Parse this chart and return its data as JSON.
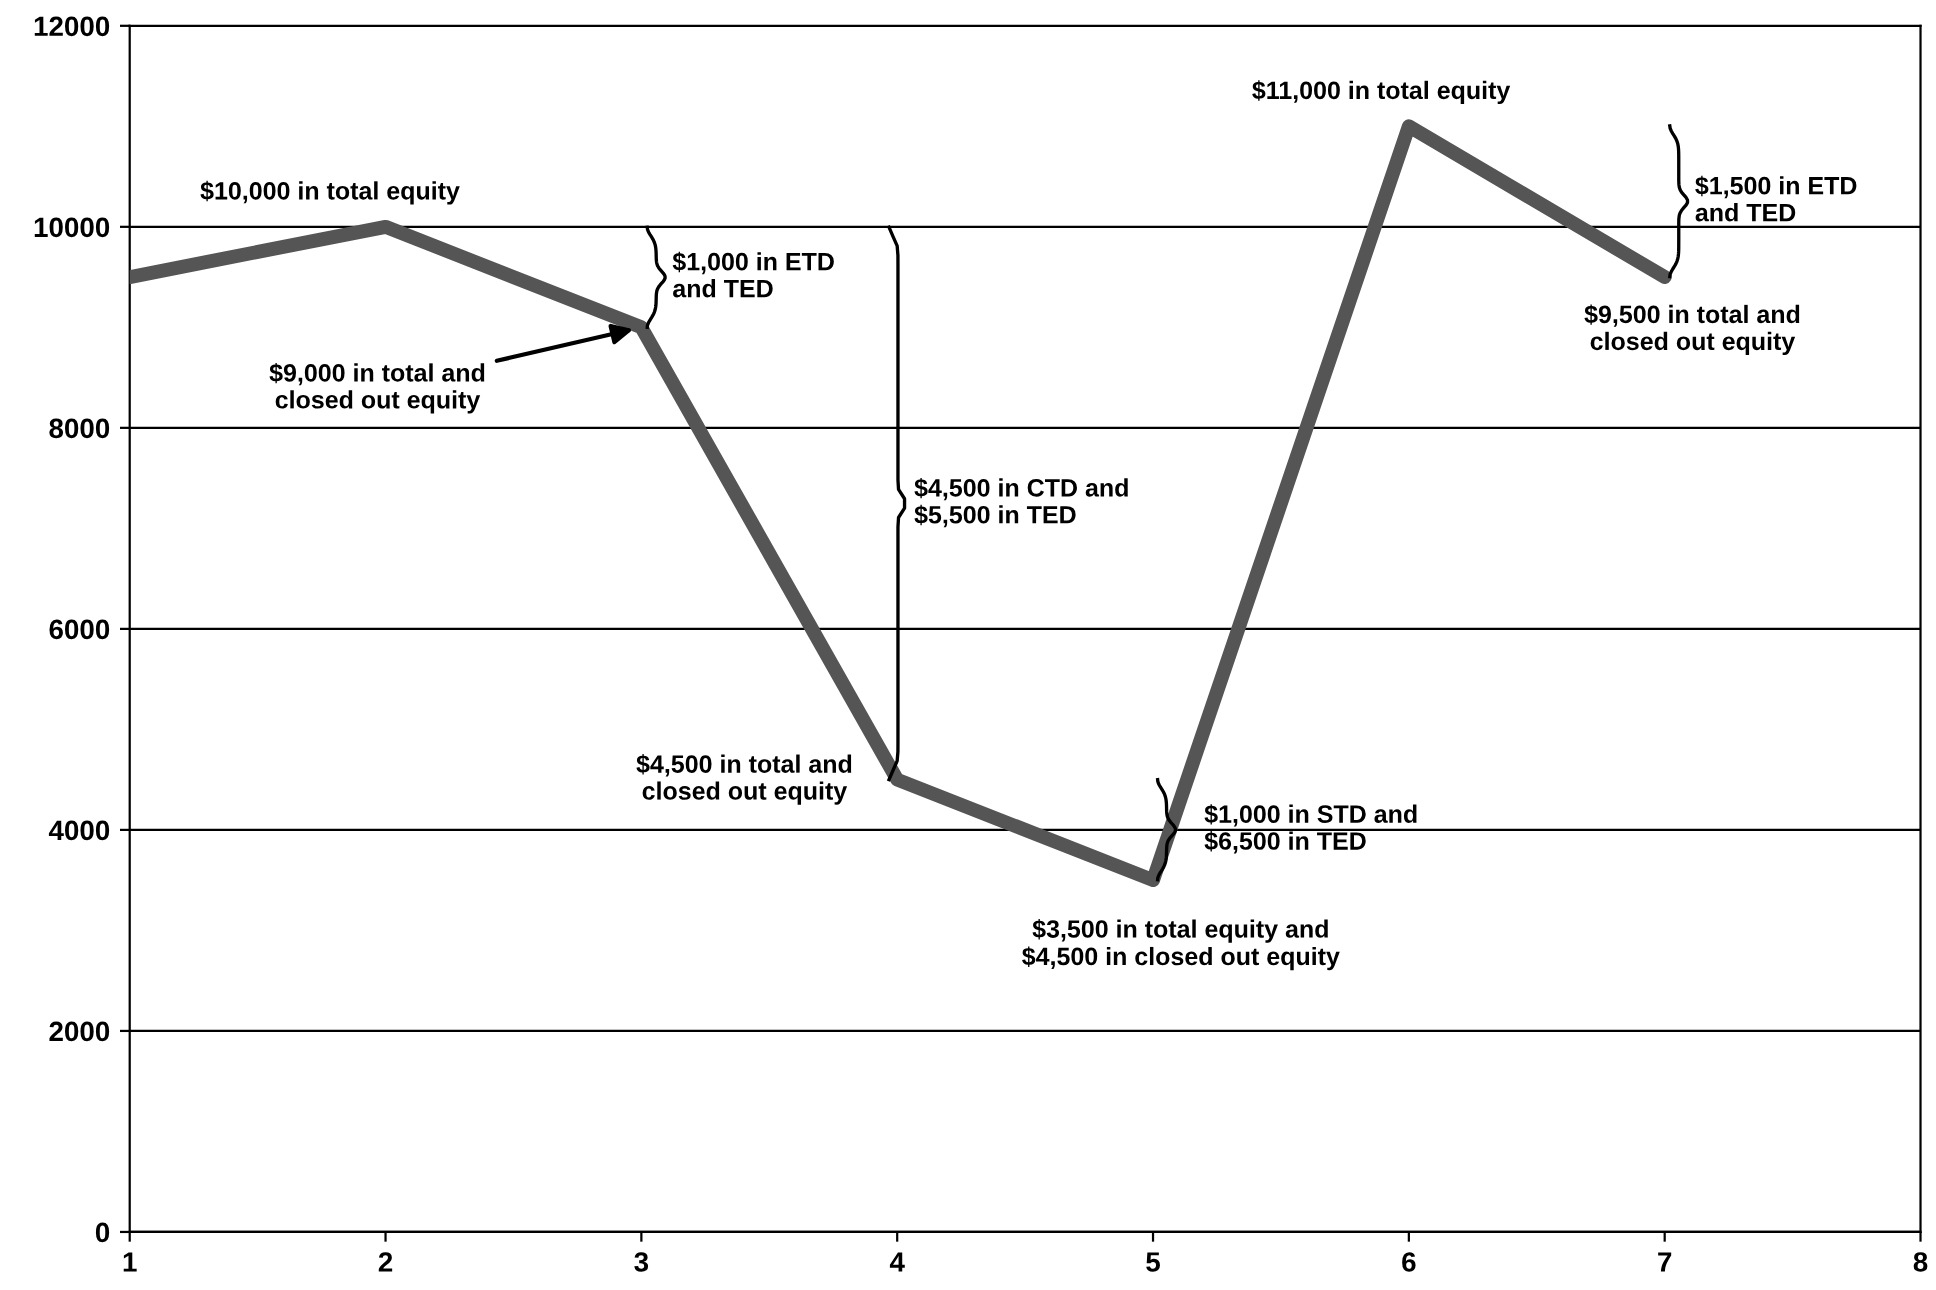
{
  "chart_data": {
    "type": "line",
    "x": [
      1,
      2,
      3,
      4,
      5,
      6,
      7
    ],
    "series": [
      {
        "color": "#555555",
        "values": [
          9500,
          10000,
          9000,
          4500,
          3500,
          11000,
          9500
        ]
      }
    ],
    "xlim": [
      1,
      8
    ],
    "xticks": [
      1,
      2,
      3,
      4,
      5,
      6,
      7,
      8
    ],
    "ylim": [
      0,
      12000
    ],
    "yticks": [
      0,
      2000,
      4000,
      6000,
      8000,
      10000,
      12000
    ],
    "grid": "y",
    "marker": "none",
    "line_style": "solid",
    "annotations": [
      {
        "text": "$10,000 in total equity",
        "x": 2,
        "y": 10000
      },
      {
        "text": "$9,000 in total and\nclosed out equity",
        "x": 3,
        "y": 9000
      },
      "$1,000 in ETD\nand TED",
      "$4,500 in CTD and\n$5,500 in TED",
      {
        "text": "$4,500 in total and\nclosed out equity",
        "x": 4,
        "y": 4500
      },
      "$1,000 in STD and\n$6,500 in TED",
      {
        "text": "$3,500 in total equity and\n$4,500 in closed out equity",
        "x": 5,
        "y": 3500
      },
      {
        "text": "$11,000 in total equity",
        "x": 6,
        "y": 11000
      },
      "$1,500 in ETD\nand TED",
      {
        "text": "$9,500 in total and\nclosed out equity",
        "x": 7,
        "y": 9500
      }
    ]
  }
}
